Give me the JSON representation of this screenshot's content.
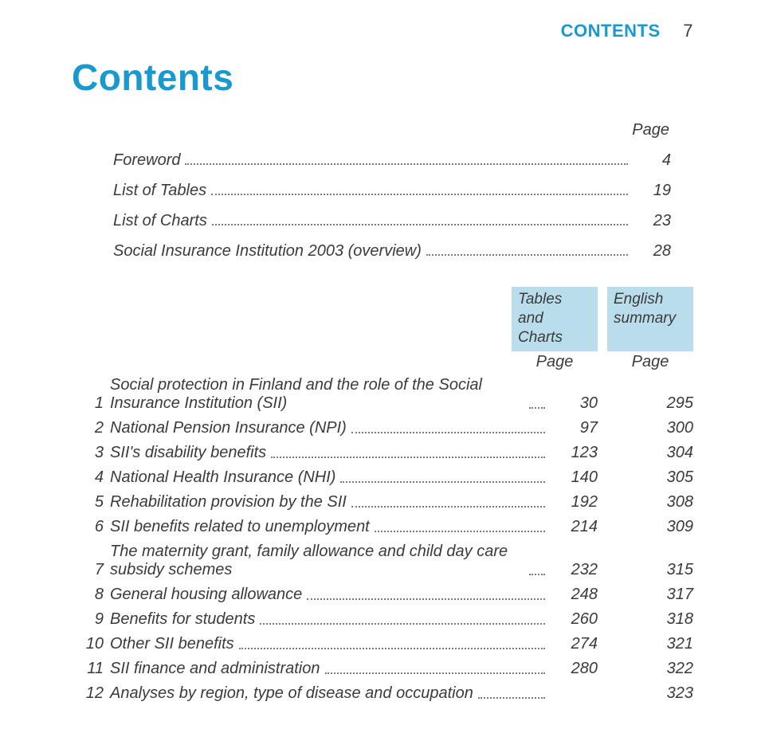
{
  "page": {
    "running_head": "CONTENTS",
    "running_page": "7",
    "title": "Contents",
    "colors": {
      "accent": "#1a99cf",
      "header_bg": "#b9ddea",
      "text": "#3b3b3b",
      "dots": "#7a7a7a"
    }
  },
  "simple": {
    "col_label": "Page",
    "rows": [
      {
        "label": "Foreword",
        "page": "4"
      },
      {
        "label": "List of Tables",
        "page": "19"
      },
      {
        "label": "List of Charts",
        "page": "23"
      },
      {
        "label": "Social Insurance Institution 2003 (overview)",
        "page": "28"
      }
    ]
  },
  "chapters": {
    "headers": {
      "col1_line1": "Tables",
      "col1_line2": "and",
      "col1_line3": "Charts",
      "col2_line1": "English",
      "col2_line2": "summary"
    },
    "page_label": "Page",
    "rows": [
      {
        "n": "1",
        "label": "Social protection in Finland and the role of the Social Insurance Institution (SII)",
        "p1": "30",
        "p2": "295",
        "multi": true
      },
      {
        "n": "2",
        "label": "National Pension Insurance (NPI)",
        "p1": "97",
        "p2": "300"
      },
      {
        "n": "3",
        "label": "SII's disability benefits",
        "p1": "123",
        "p2": "304"
      },
      {
        "n": "4",
        "label": "National Health Insurance (NHI)",
        "p1": "140",
        "p2": "305"
      },
      {
        "n": "5",
        "label": "Rehabilitation provision by the SII",
        "p1": "192",
        "p2": "308"
      },
      {
        "n": "6",
        "label": "SII benefits related to unemployment",
        "p1": "214",
        "p2": "309"
      },
      {
        "n": "7",
        "label": "The maternity grant, family allowance and child day care subsidy schemes",
        "p1": "232",
        "p2": "315",
        "multi": true
      },
      {
        "n": "8",
        "label": "General housing allowance",
        "p1": "248",
        "p2": "317"
      },
      {
        "n": "9",
        "label": "Benefits for students",
        "p1": "260",
        "p2": "318"
      },
      {
        "n": "10",
        "label": "Other SII benefits",
        "p1": "274",
        "p2": "321"
      },
      {
        "n": "11",
        "label": "SII finance and administration",
        "p1": "280",
        "p2": "322"
      },
      {
        "n": "12",
        "label": "Analyses by region, type of disease and occupation",
        "p1": "",
        "p2": "323"
      }
    ]
  }
}
